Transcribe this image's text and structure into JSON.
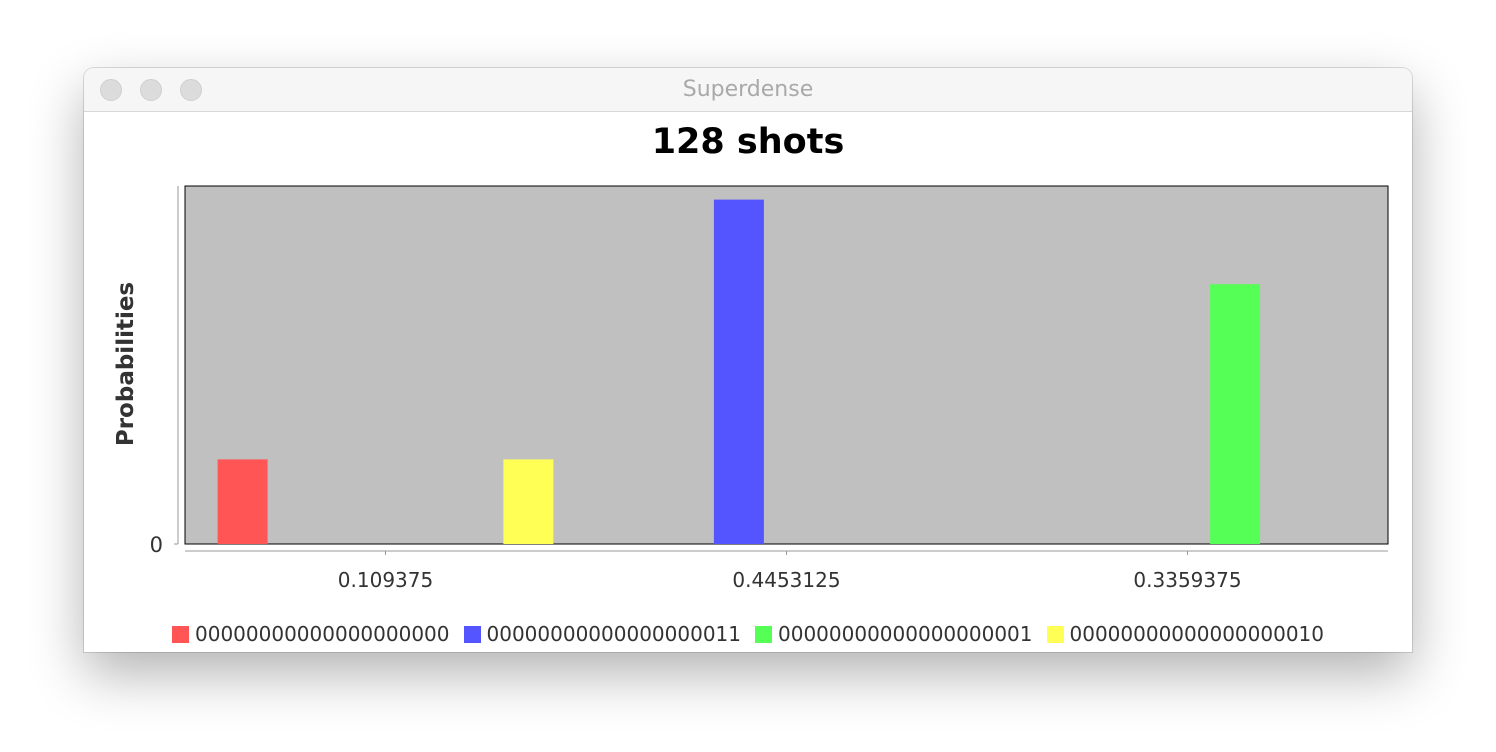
{
  "window": {
    "title": "Superdense"
  },
  "chart_data": {
    "type": "bar",
    "title": "128 shots",
    "xlabel": "",
    "ylabel": "Probabilities",
    "y_ticks": [
      "0"
    ],
    "ylim": [
      0,
      0.4629
    ],
    "grid": false,
    "legend_placement": "bottom",
    "plot_background": "#c0c0c0",
    "categories": [
      "0.109375",
      "0.4453125",
      "0.3359375"
    ],
    "series": [
      {
        "name": "00000000000000000000",
        "color": "#ff5555",
        "values": [
          0.109375,
          null,
          null
        ]
      },
      {
        "name": "00000000000000000011",
        "color": "#5555ff",
        "values": [
          null,
          0.4453125,
          null
        ]
      },
      {
        "name": "00000000000000000001",
        "color": "#55ff55",
        "values": [
          null,
          null,
          0.3359375
        ]
      },
      {
        "name": "00000000000000000010",
        "color": "#ffff55",
        "values": [
          0.109375,
          null,
          null
        ]
      }
    ]
  }
}
